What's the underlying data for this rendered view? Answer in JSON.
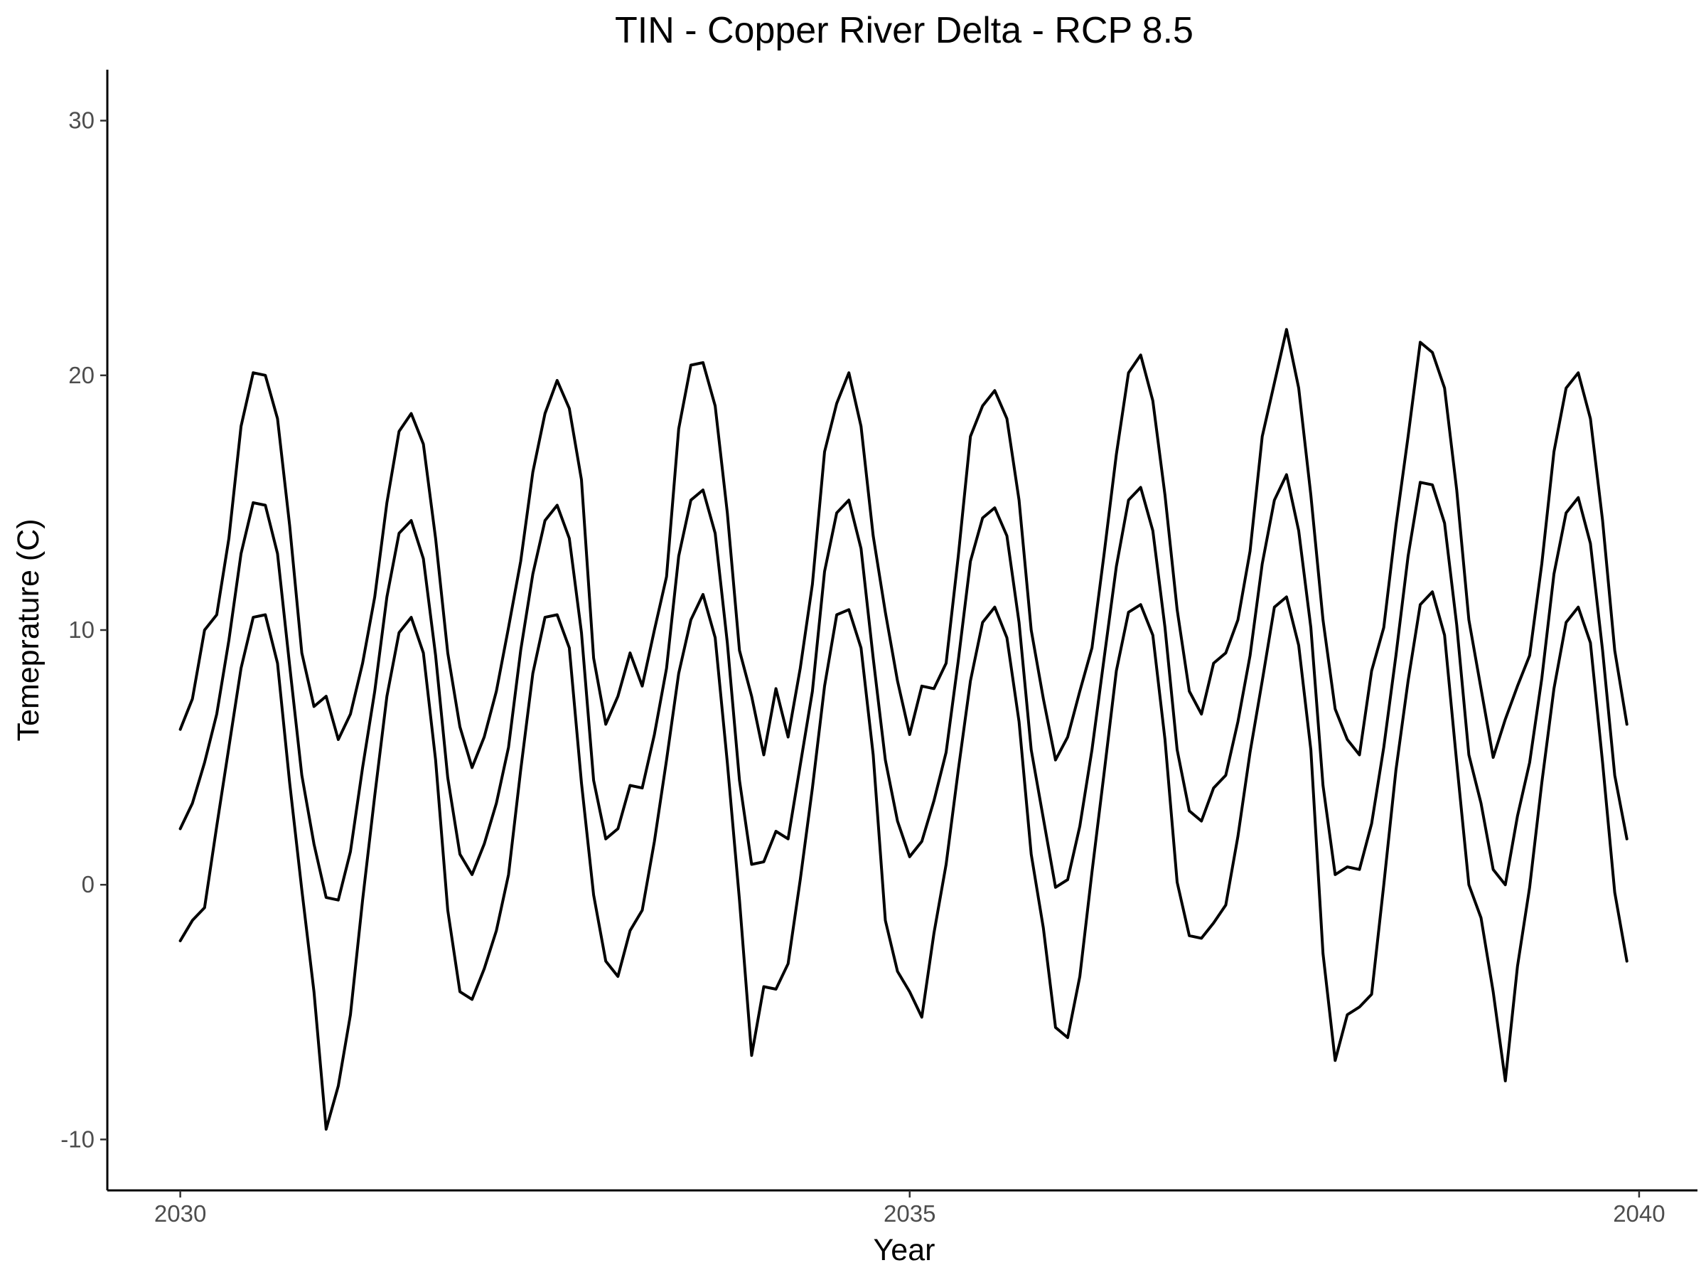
{
  "chart_data": {
    "type": "line",
    "title": "TIN - Copper River Delta - RCP 8.5",
    "xlabel": "Year",
    "ylabel": "Temeprature (C)",
    "xlim": [
      2029.5,
      2040.4
    ],
    "ylim": [
      -12,
      32
    ],
    "xticks": [
      2030,
      2035,
      2040
    ],
    "yticks": [
      -10,
      0,
      10,
      20,
      30
    ],
    "xtick_labels": [
      "2030",
      "2035",
      "2040"
    ],
    "ytick_labels": [
      "-10",
      "0",
      "10",
      "20",
      "30"
    ],
    "grid": false,
    "legend": "none",
    "line_color": "#000000",
    "x_start": 2030.0,
    "x_step_years": 0.08333,
    "series": [
      {
        "values": [
          6.1,
          7.3,
          10.0,
          10.6,
          13.6,
          18.0,
          20.1,
          20.0,
          18.3,
          14.1,
          9.1,
          7.0,
          7.4,
          5.7,
          6.7,
          8.7,
          11.3,
          15.0,
          17.8,
          18.5,
          17.3,
          13.6,
          9.1,
          6.2,
          4.6,
          5.8,
          7.6,
          10.1,
          12.7,
          16.2,
          18.5,
          19.8,
          18.7,
          15.9,
          8.9,
          6.3,
          7.4,
          9.1,
          7.8,
          10.0,
          12.1,
          17.9,
          20.4,
          20.5,
          18.8,
          14.6,
          9.2,
          7.4,
          5.1,
          7.7,
          5.8,
          8.5,
          11.8,
          17.0,
          18.9,
          20.1,
          18.0,
          13.7,
          10.7,
          8.0,
          5.9,
          7.8,
          7.7,
          8.7,
          12.9,
          17.6,
          18.8,
          19.4,
          18.3,
          15.1,
          10.0,
          7.3,
          4.9,
          5.8,
          7.6,
          9.3,
          13.0,
          16.9,
          20.1,
          20.8,
          19.0,
          15.3,
          10.8,
          7.6,
          6.7,
          8.7,
          9.1,
          10.4,
          13.1,
          17.6,
          19.7,
          21.8,
          19.5,
          15.3,
          10.4,
          6.9,
          5.7,
          5.1,
          8.4,
          10.1,
          14.1,
          17.6,
          21.3,
          20.9,
          19.5,
          15.5,
          10.4,
          7.7,
          5.0,
          6.5,
          7.8,
          9.0,
          12.6,
          17.0,
          19.5,
          20.1,
          18.3,
          14.3,
          9.2,
          6.3
        ]
      },
      {
        "values": [
          2.2,
          3.2,
          4.8,
          6.7,
          9.6,
          13.0,
          15.0,
          14.9,
          13.0,
          8.6,
          4.3,
          1.6,
          -0.5,
          -0.6,
          1.3,
          4.6,
          7.6,
          11.3,
          13.8,
          14.3,
          12.8,
          9.0,
          4.2,
          1.2,
          0.4,
          1.6,
          3.2,
          5.4,
          9.2,
          12.2,
          14.3,
          14.9,
          13.6,
          9.9,
          4.1,
          1.8,
          2.2,
          3.9,
          3.8,
          5.9,
          8.5,
          12.9,
          15.1,
          15.5,
          13.8,
          9.5,
          4.1,
          0.8,
          0.9,
          2.1,
          1.8,
          4.7,
          7.6,
          12.3,
          14.6,
          15.1,
          13.2,
          8.9,
          4.9,
          2.5,
          1.1,
          1.7,
          3.3,
          5.2,
          8.8,
          12.7,
          14.4,
          14.8,
          13.7,
          10.3,
          5.3,
          2.6,
          -0.1,
          0.2,
          2.3,
          5.3,
          8.9,
          12.5,
          15.1,
          15.6,
          13.9,
          10.1,
          5.3,
          2.9,
          2.5,
          3.8,
          4.3,
          6.4,
          9.0,
          12.6,
          15.1,
          16.1,
          13.9,
          10.1,
          3.9,
          0.4,
          0.7,
          0.6,
          2.4,
          5.4,
          9.0,
          12.9,
          15.8,
          15.7,
          14.2,
          10.2,
          5.1,
          3.2,
          0.6,
          0.0,
          2.7,
          4.8,
          8.1,
          12.2,
          14.6,
          15.2,
          13.4,
          9.2,
          4.3,
          1.8
        ]
      },
      {
        "values": [
          -2.2,
          -1.4,
          -0.9,
          2.3,
          5.4,
          8.5,
          10.5,
          10.6,
          8.7,
          4.0,
          -0.2,
          -4.2,
          -9.6,
          -7.9,
          -5.1,
          -0.6,
          3.5,
          7.4,
          9.9,
          10.5,
          9.1,
          4.9,
          -1.0,
          -4.2,
          -4.5,
          -3.3,
          -1.8,
          0.4,
          4.5,
          8.3,
          10.5,
          10.6,
          9.3,
          4.0,
          -0.4,
          -3.0,
          -3.6,
          -1.8,
          -1.0,
          1.7,
          4.9,
          8.3,
          10.4,
          11.4,
          9.7,
          4.8,
          -0.6,
          -6.7,
          -4.0,
          -4.1,
          -3.1,
          0.2,
          3.8,
          7.8,
          10.6,
          10.8,
          9.3,
          5.1,
          -1.4,
          -3.4,
          -4.2,
          -5.2,
          -1.9,
          0.8,
          4.5,
          8.0,
          10.3,
          10.9,
          9.7,
          6.4,
          1.2,
          -1.7,
          -5.6,
          -6.0,
          -3.6,
          0.5,
          4.4,
          8.4,
          10.7,
          11.0,
          9.8,
          5.7,
          0.1,
          -2.0,
          -2.1,
          -1.5,
          -0.8,
          1.9,
          5.2,
          8.0,
          10.9,
          11.3,
          9.4,
          5.3,
          -2.7,
          -6.9,
          -5.1,
          -4.8,
          -4.3,
          0.0,
          4.5,
          8.0,
          11.0,
          11.5,
          9.8,
          4.8,
          0.0,
          -1.3,
          -4.2,
          -7.7,
          -3.2,
          -0.1,
          4.0,
          7.7,
          10.3,
          10.9,
          9.5,
          4.8,
          -0.3,
          -3.0
        ]
      }
    ]
  }
}
